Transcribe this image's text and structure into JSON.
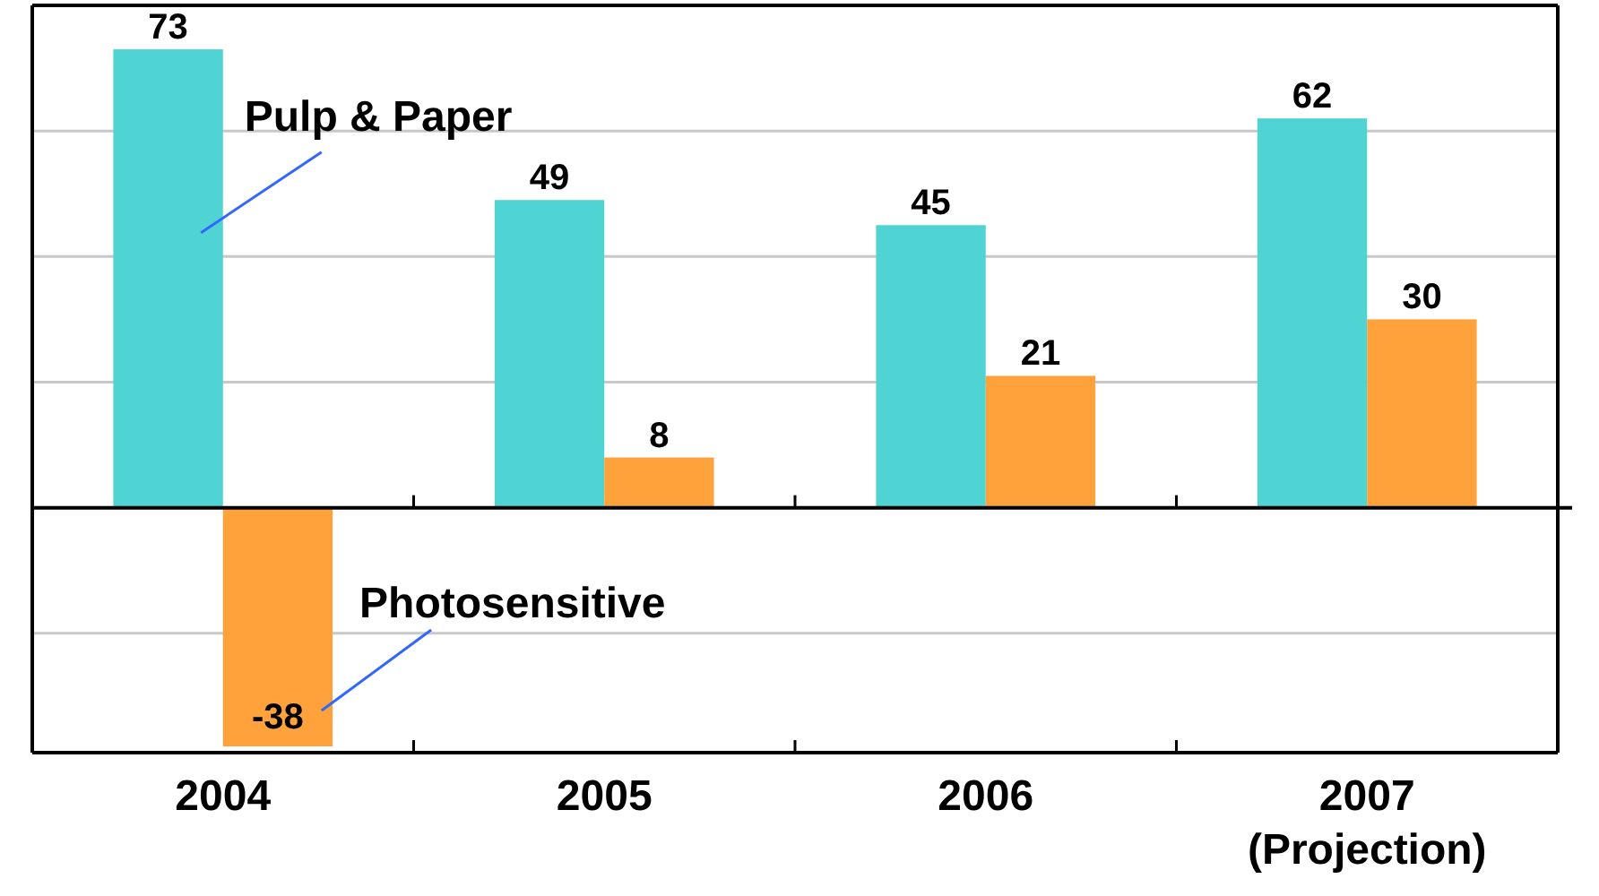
{
  "chart_data": {
    "type": "bar",
    "categories": [
      "2004",
      "2005",
      "2006",
      "2007\n(Projection)"
    ],
    "series": [
      {
        "name": "Pulp & Paper",
        "color": "#4fd3d3",
        "values": [
          73,
          49,
          45,
          62
        ]
      },
      {
        "name": "Photosensitive",
        "color": "#ffa23c",
        "values": [
          -38,
          8,
          21,
          30
        ]
      }
    ],
    "ylim": [
      -39,
      80
    ],
    "yticks": [
      {
        "value": -20,
        "label": null
      },
      {
        "value": 0,
        "label": null
      },
      {
        "value": 20,
        "label": null
      },
      {
        "value": 40,
        "label": null
      },
      {
        "value": 60,
        "label": null
      }
    ],
    "tick_labels": "x",
    "grid": "y",
    "data_labels": true,
    "legend": false
  }
}
